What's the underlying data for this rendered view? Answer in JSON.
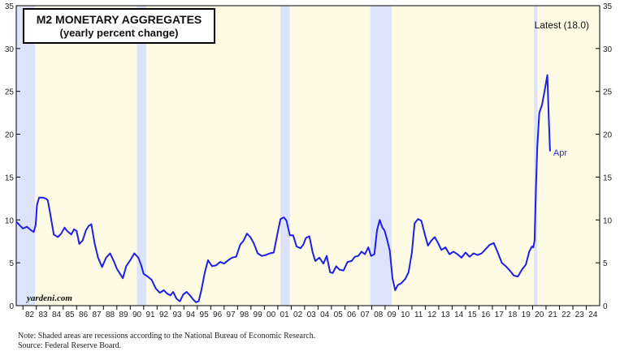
{
  "chart_data": {
    "type": "line",
    "title": "M2 MONETARY AGGREGATES",
    "subtitle": "(yearly percent change)",
    "annotation": "Latest (18.0)",
    "last_point_label": "Apr",
    "watermark": "yardeni.com",
    "ylim": [
      0,
      35
    ],
    "yticks": [
      0,
      5,
      10,
      15,
      20,
      25,
      30,
      35
    ],
    "xlim": [
      1981.5,
      2025
    ],
    "xtick_labels": [
      "82",
      "83",
      "84",
      "85",
      "86",
      "87",
      "88",
      "89",
      "90",
      "91",
      "92",
      "93",
      "94",
      "95",
      "96",
      "97",
      "98",
      "99",
      "00",
      "01",
      "02",
      "03",
      "04",
      "05",
      "06",
      "07",
      "08",
      "09",
      "10",
      "11",
      "12",
      "13",
      "14",
      "15",
      "16",
      "17",
      "18",
      "19",
      "20",
      "21",
      "22",
      "23",
      "24"
    ],
    "recessions": [
      [
        1981.5,
        1982.9
      ],
      [
        1990.5,
        1991.2
      ],
      [
        2001.2,
        2001.9
      ],
      [
        2007.9,
        2009.5
      ],
      [
        2020.1,
        2020.35
      ]
    ],
    "colors": {
      "line": "#1f1fe6",
      "background": "#fdfbe3",
      "recession": "#dde3fb",
      "axis": "#000000"
    },
    "series": [
      {
        "name": "M2 yearly percent change",
        "x": [
          1981.5,
          1981.8,
          1982.0,
          1982.3,
          1982.6,
          1982.8,
          1982.95,
          1983.05,
          1983.2,
          1983.5,
          1983.7,
          1983.85,
          1984.0,
          1984.3,
          1984.6,
          1984.85,
          1985.1,
          1985.3,
          1985.6,
          1985.8,
          1986.0,
          1986.2,
          1986.45,
          1986.7,
          1986.9,
          1987.1,
          1987.35,
          1987.6,
          1987.9,
          1988.2,
          1988.5,
          1988.8,
          1989.0,
          1989.2,
          1989.45,
          1989.7,
          1990.0,
          1990.3,
          1990.6,
          1990.8,
          1991.0,
          1991.3,
          1991.6,
          1991.9,
          1992.2,
          1992.5,
          1992.75,
          1993.0,
          1993.2,
          1993.45,
          1993.7,
          1993.95,
          1994.2,
          1994.45,
          1994.7,
          1994.9,
          1995.1,
          1995.3,
          1995.55,
          1995.8,
          1996.1,
          1996.4,
          1996.7,
          1997.0,
          1997.3,
          1997.6,
          1997.9,
          1998.2,
          1998.45,
          1998.7,
          1998.95,
          1999.2,
          1999.5,
          1999.8,
          2000.1,
          2000.4,
          2000.7,
          2001.0,
          2001.2,
          2001.45,
          2001.65,
          2001.9,
          2002.15,
          2002.4,
          2002.7,
          2002.9,
          2003.1,
          2003.35,
          2003.6,
          2003.8,
          2004.1,
          2004.4,
          2004.65,
          2004.9,
          2005.1,
          2005.35,
          2005.6,
          2005.9,
          2006.2,
          2006.5,
          2006.75,
          2007.0,
          2007.25,
          2007.5,
          2007.75,
          2007.95,
          2008.2,
          2008.4,
          2008.6,
          2008.8,
          2008.95,
          2009.15,
          2009.35,
          2009.55,
          2009.75,
          2009.95,
          2010.2,
          2010.5,
          2010.75,
          2011.0,
          2011.2,
          2011.45,
          2011.7,
          2011.95,
          2012.2,
          2012.45,
          2012.7,
          2012.95,
          2013.2,
          2013.5,
          2013.8,
          2014.1,
          2014.4,
          2014.7,
          2015.0,
          2015.3,
          2015.6,
          2015.9,
          2016.2,
          2016.5,
          2016.8,
          2017.1,
          2017.4,
          2017.7,
          2018.0,
          2018.3,
          2018.6,
          2018.9,
          2019.2,
          2019.5,
          2019.75,
          2019.95,
          2020.05,
          2020.15,
          2020.25,
          2020.35,
          2020.5,
          2020.7,
          2020.9,
          2021.1,
          2021.2,
          2021.3
        ],
        "values": [
          9.8,
          9.3,
          9.0,
          9.2,
          8.8,
          8.6,
          9.4,
          11.8,
          12.6,
          12.6,
          12.5,
          12.3,
          11.0,
          8.3,
          8.0,
          8.4,
          9.1,
          8.7,
          8.3,
          8.9,
          8.7,
          7.2,
          7.6,
          8.8,
          9.3,
          9.5,
          7.2,
          5.6,
          4.5,
          5.6,
          6.1,
          5.1,
          4.3,
          3.8,
          3.2,
          4.6,
          5.3,
          6.1,
          5.6,
          4.8,
          3.7,
          3.4,
          3.0,
          2.0,
          1.5,
          1.8,
          1.4,
          1.2,
          1.6,
          0.8,
          0.5,
          1.3,
          1.6,
          1.2,
          0.7,
          0.4,
          0.5,
          1.8,
          3.8,
          5.3,
          4.6,
          4.7,
          5.1,
          4.9,
          5.3,
          5.6,
          5.7,
          7.1,
          7.6,
          8.4,
          8.0,
          7.3,
          6.1,
          5.8,
          5.9,
          6.1,
          6.2,
          8.6,
          10.1,
          10.3,
          9.9,
          8.2,
          8.2,
          6.9,
          6.7,
          7.1,
          7.9,
          8.1,
          6.2,
          5.2,
          5.6,
          4.9,
          5.8,
          3.9,
          3.8,
          4.6,
          4.2,
          4.1,
          5.1,
          5.2,
          5.7,
          5.8,
          6.3,
          6.0,
          6.8,
          5.8,
          6.0,
          8.8,
          10.0,
          9.1,
          8.8,
          7.7,
          6.4,
          3.2,
          1.8,
          2.4,
          2.6,
          3.1,
          3.9,
          6.2,
          9.6,
          10.1,
          9.9,
          8.4,
          7.0,
          7.6,
          8.0,
          7.3,
          6.5,
          6.8,
          6.0,
          6.3,
          6.0,
          5.6,
          6.2,
          5.7,
          6.1,
          5.9,
          6.1,
          6.6,
          7.1,
          7.3,
          6.2,
          5.0,
          4.6,
          4.1,
          3.5,
          3.4,
          4.2,
          4.8,
          6.3,
          6.9,
          6.8,
          7.6,
          13.9,
          18.5,
          22.5,
          23.4,
          25.1,
          26.9,
          22.0,
          18.0
        ]
      }
    ],
    "footnotes": [
      "Note: Shaded areas are recessions according to the National Bureau of Economic Research.",
      "Source: Federal Reserve Board."
    ]
  }
}
